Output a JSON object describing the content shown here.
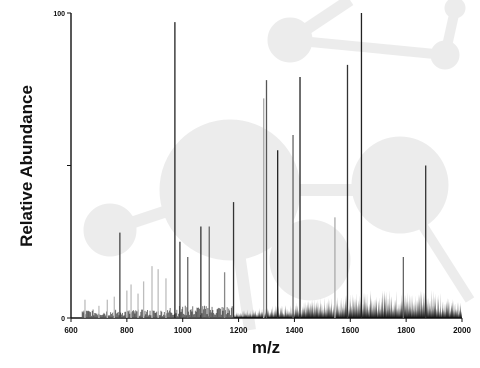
{
  "chart_data": {
    "type": "bar",
    "title": "",
    "xlabel": "m/z",
    "ylabel": "Relative Abundance",
    "xlim": [
      600,
      2000
    ],
    "ylim": [
      0,
      100
    ],
    "x_ticks": [
      600,
      800,
      1000,
      1200,
      1400,
      1600,
      1800,
      2000
    ],
    "x_tick_labels": [
      "600",
      "800",
      "1000",
      "1200",
      "1400",
      "1600",
      "1800",
      "2000"
    ],
    "y_ticks": [
      0,
      50,
      100
    ],
    "y_tick_labels": [
      "0",
      "",
      "100"
    ],
    "grid": false,
    "legend": "none",
    "series": [
      {
        "peaks": [
          {
            "mz": 650,
            "abundance": 6,
            "color": "#bdbdbd"
          },
          {
            "mz": 700,
            "abundance": 4,
            "color": "#bdbdbd"
          },
          {
            "mz": 730,
            "abundance": 6,
            "color": "#bdbdbd"
          },
          {
            "mz": 755,
            "abundance": 7,
            "color": "#bdbdbd"
          },
          {
            "mz": 775,
            "abundance": 28,
            "color": "#444444"
          },
          {
            "mz": 800,
            "abundance": 9,
            "color": "#bdbdbd"
          },
          {
            "mz": 815,
            "abundance": 11,
            "color": "#bdbdbd"
          },
          {
            "mz": 840,
            "abundance": 8,
            "color": "#bdbdbd"
          },
          {
            "mz": 860,
            "abundance": 12,
            "color": "#bdbdbd"
          },
          {
            "mz": 890,
            "abundance": 17,
            "color": "#bdbdbd"
          },
          {
            "mz": 912,
            "abundance": 16,
            "color": "#bdbdbd"
          },
          {
            "mz": 940,
            "abundance": 13,
            "color": "#bdbdbd"
          },
          {
            "mz": 972,
            "abundance": 97,
            "color": "#222222"
          },
          {
            "mz": 990,
            "abundance": 25,
            "color": "#444444"
          },
          {
            "mz": 1018,
            "abundance": 20,
            "color": "#666666"
          },
          {
            "mz": 1065,
            "abundance": 30,
            "color": "#333333"
          },
          {
            "mz": 1095,
            "abundance": 30,
            "color": "#666666"
          },
          {
            "mz": 1150,
            "abundance": 15,
            "color": "#888888"
          },
          {
            "mz": 1182,
            "abundance": 38,
            "color": "#333333"
          },
          {
            "mz": 1290,
            "abundance": 72,
            "color": "#aaaaaa"
          },
          {
            "mz": 1300,
            "abundance": 78,
            "color": "#555555"
          },
          {
            "mz": 1340,
            "abundance": 55,
            "color": "#222222"
          },
          {
            "mz": 1395,
            "abundance": 60,
            "color": "#666666"
          },
          {
            "mz": 1420,
            "abundance": 79,
            "color": "#222222"
          },
          {
            "mz": 1545,
            "abundance": 33,
            "color": "#aaaaaa"
          },
          {
            "mz": 1590,
            "abundance": 83,
            "color": "#333333"
          },
          {
            "mz": 1640,
            "abundance": 100,
            "color": "#222222"
          },
          {
            "mz": 1790,
            "abundance": 20,
            "color": "#666666"
          },
          {
            "mz": 1870,
            "abundance": 50,
            "color": "#333333"
          }
        ]
      }
    ]
  }
}
